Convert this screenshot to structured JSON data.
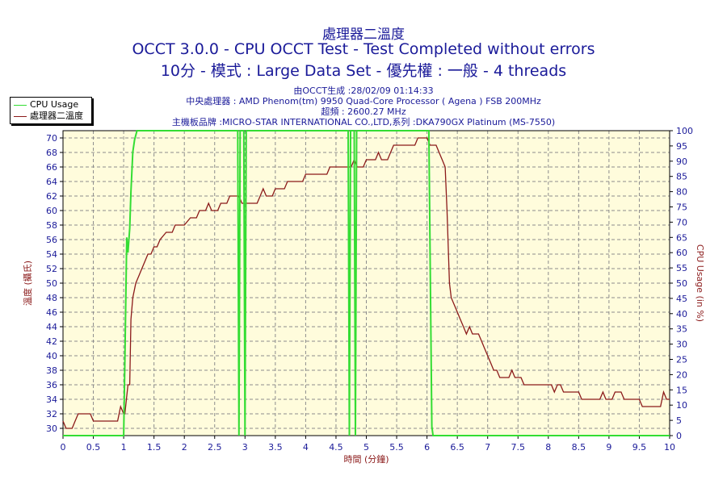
{
  "header": {
    "title1": "處理器二溫度",
    "title2": "OCCT 3.0.0 - CPU OCCT Test - Test Completed without errors",
    "title3": "10分 - 模式 : Large Data Set - 優先權 : 一般 - 4 threads",
    "info1": "由OCCT生成 :28/02/09 01:14:33",
    "info2": "中央處理器 : AMD Phenom(tm) 9950 Quad-Core Processor ( Agena ) FSB 200MHz",
    "info3": "超頻 : 2600.27 MHz",
    "info4": "主機板品牌 :MICRO-STAR INTERNATIONAL CO.,LTD,系列 :DKA790GX Platinum (MS-7550)"
  },
  "legend": {
    "cpu_usage": "CPU Usage",
    "temperature": "處理器二溫度"
  },
  "colors": {
    "cpu_usage": "#33dd33",
    "temperature": "#8b1a1a",
    "plot_bg": "#fffcdc",
    "grid": "#8c8c8c",
    "text": "#1a1a99",
    "axis_label_left": "#8b1a1a"
  },
  "chart_data": {
    "type": "line",
    "xlabel": "時間 (分鐘)",
    "ylabel_left": "溫度 (攝氏)",
    "ylabel_right": "CPU Usage (in %)",
    "xlim": [
      0,
      10
    ],
    "ylim_left": [
      29,
      71
    ],
    "ylim_right": [
      0,
      100
    ],
    "grid": true,
    "legend_position": "top-left",
    "x_ticks": [
      "0",
      "0.5",
      "1",
      "1.5",
      "2",
      "2.5",
      "3",
      "3.5",
      "4",
      "4.5",
      "5",
      "5.5",
      "6",
      "6.5",
      "7",
      "7.5",
      "8",
      "8.5",
      "9",
      "9.5",
      "10"
    ],
    "y_left_ticks": [
      "30",
      "32",
      "34",
      "36",
      "38",
      "40",
      "42",
      "44",
      "46",
      "48",
      "50",
      "52",
      "54",
      "56",
      "58",
      "60",
      "62",
      "64",
      "66",
      "68",
      "70"
    ],
    "y_right_ticks": [
      "0",
      "5",
      "10",
      "15",
      "20",
      "25",
      "30",
      "35",
      "40",
      "45",
      "50",
      "55",
      "60",
      "65",
      "70",
      "75",
      "80",
      "85",
      "90",
      "95",
      "100"
    ],
    "series": [
      {
        "name": "處理器二溫度",
        "axis": "left",
        "points": [
          [
            0,
            31
          ],
          [
            0.05,
            30
          ],
          [
            0.15,
            30
          ],
          [
            0.2,
            31
          ],
          [
            0.25,
            32
          ],
          [
            0.45,
            32
          ],
          [
            0.5,
            31
          ],
          [
            0.9,
            31
          ],
          [
            0.95,
            33
          ],
          [
            1.0,
            32
          ],
          [
            1.02,
            32
          ],
          [
            1.07,
            36
          ],
          [
            1.1,
            36
          ],
          [
            1.12,
            45
          ],
          [
            1.15,
            48
          ],
          [
            1.2,
            50
          ],
          [
            1.25,
            51
          ],
          [
            1.3,
            52
          ],
          [
            1.35,
            53
          ],
          [
            1.4,
            54
          ],
          [
            1.45,
            54
          ],
          [
            1.5,
            55
          ],
          [
            1.55,
            55
          ],
          [
            1.6,
            56
          ],
          [
            1.7,
            57
          ],
          [
            1.8,
            57
          ],
          [
            1.85,
            58
          ],
          [
            2.0,
            58
          ],
          [
            2.1,
            59
          ],
          [
            2.2,
            59
          ],
          [
            2.25,
            60
          ],
          [
            2.35,
            60
          ],
          [
            2.4,
            61
          ],
          [
            2.45,
            60
          ],
          [
            2.55,
            60
          ],
          [
            2.6,
            61
          ],
          [
            2.7,
            61
          ],
          [
            2.75,
            62
          ],
          [
            2.9,
            62
          ],
          [
            2.95,
            61
          ],
          [
            3.2,
            61
          ],
          [
            3.25,
            62
          ],
          [
            3.3,
            63
          ],
          [
            3.35,
            62
          ],
          [
            3.45,
            62
          ],
          [
            3.5,
            63
          ],
          [
            3.65,
            63
          ],
          [
            3.7,
            64
          ],
          [
            3.95,
            64
          ],
          [
            4.0,
            65
          ],
          [
            4.35,
            65
          ],
          [
            4.4,
            66
          ],
          [
            4.75,
            66
          ],
          [
            4.8,
            67
          ],
          [
            4.85,
            66
          ],
          [
            4.95,
            66
          ],
          [
            5.0,
            67
          ],
          [
            5.15,
            67
          ],
          [
            5.2,
            68
          ],
          [
            5.25,
            67
          ],
          [
            5.35,
            67
          ],
          [
            5.4,
            68
          ],
          [
            5.45,
            69
          ],
          [
            5.8,
            69
          ],
          [
            5.85,
            70
          ],
          [
            6.0,
            70
          ],
          [
            6.05,
            69
          ],
          [
            6.15,
            69
          ],
          [
            6.2,
            68
          ],
          [
            6.25,
            67
          ],
          [
            6.3,
            66
          ],
          [
            6.33,
            60
          ],
          [
            6.37,
            50
          ],
          [
            6.4,
            48
          ],
          [
            6.45,
            47
          ],
          [
            6.5,
            46
          ],
          [
            6.55,
            45
          ],
          [
            6.6,
            44
          ],
          [
            6.65,
            43
          ],
          [
            6.7,
            44
          ],
          [
            6.75,
            43
          ],
          [
            6.85,
            43
          ],
          [
            6.9,
            42
          ],
          [
            6.95,
            41
          ],
          [
            7.0,
            40
          ],
          [
            7.05,
            39
          ],
          [
            7.1,
            38
          ],
          [
            7.15,
            38
          ],
          [
            7.2,
            37
          ],
          [
            7.35,
            37
          ],
          [
            7.4,
            38
          ],
          [
            7.45,
            37
          ],
          [
            7.55,
            37
          ],
          [
            7.6,
            36
          ],
          [
            8.05,
            36
          ],
          [
            8.1,
            35
          ],
          [
            8.15,
            36
          ],
          [
            8.2,
            36
          ],
          [
            8.25,
            35
          ],
          [
            8.5,
            35
          ],
          [
            8.55,
            34
          ],
          [
            8.85,
            34
          ],
          [
            8.9,
            35
          ],
          [
            8.95,
            34
          ],
          [
            9.05,
            34
          ],
          [
            9.1,
            35
          ],
          [
            9.2,
            35
          ],
          [
            9.25,
            34
          ],
          [
            9.5,
            34
          ],
          [
            9.55,
            33
          ],
          [
            9.85,
            33
          ],
          [
            9.9,
            35
          ],
          [
            9.95,
            34
          ],
          [
            10.0,
            34
          ]
        ]
      },
      {
        "name": "CPU Usage",
        "axis": "right",
        "points": [
          [
            0,
            0
          ],
          [
            1.0,
            0
          ],
          [
            1.02,
            25
          ],
          [
            1.05,
            65
          ],
          [
            1.07,
            60
          ],
          [
            1.1,
            68
          ],
          [
            1.12,
            80
          ],
          [
            1.15,
            93
          ],
          [
            1.18,
            97
          ],
          [
            1.22,
            100
          ],
          [
            2.88,
            100
          ],
          [
            2.9,
            0
          ],
          [
            2.92,
            100
          ],
          [
            2.98,
            100
          ],
          [
            3.0,
            0
          ],
          [
            3.02,
            100
          ],
          [
            4.7,
            100
          ],
          [
            4.72,
            0
          ],
          [
            4.74,
            100
          ],
          [
            4.8,
            100
          ],
          [
            4.82,
            0
          ],
          [
            4.84,
            100
          ],
          [
            6.03,
            100
          ],
          [
            6.08,
            3
          ],
          [
            6.1,
            0
          ],
          [
            10.0,
            0
          ]
        ]
      }
    ]
  }
}
